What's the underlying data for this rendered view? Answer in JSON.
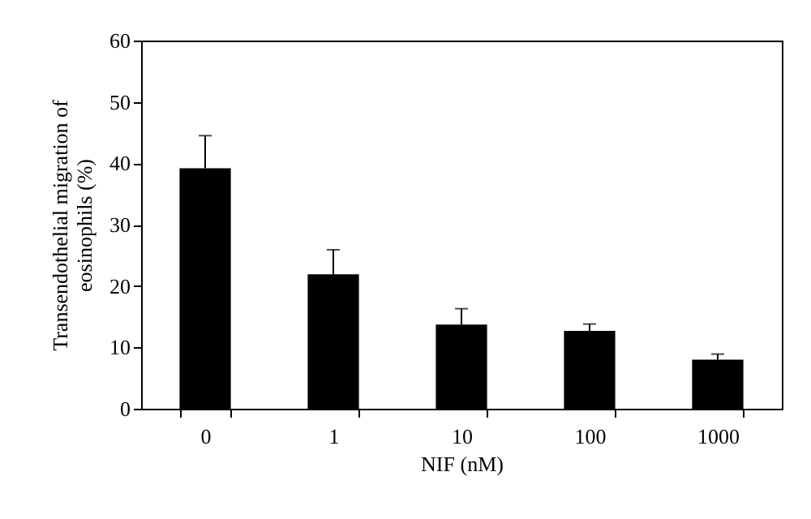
{
  "chart_data": {
    "type": "bar",
    "xlabel": "NIF (nM)",
    "ylabel": "Transendothelial migration of eosinophils (%)",
    "categories": [
      "0",
      "1",
      "10",
      "100",
      "1000"
    ],
    "values": [
      39.2,
      21.9,
      13.7,
      12.7,
      8.0
    ],
    "errors": [
      [
        39.2,
        44.5
      ],
      [
        21.9,
        25.9
      ],
      [
        13.7,
        16.3
      ],
      [
        12.7,
        13.8
      ],
      [
        8.0,
        8.9
      ]
    ],
    "color": "#000000",
    "ylim": [
      0,
      60
    ],
    "yticks": [
      0,
      10,
      20,
      30,
      40,
      50,
      60
    ],
    "grid": false
  }
}
